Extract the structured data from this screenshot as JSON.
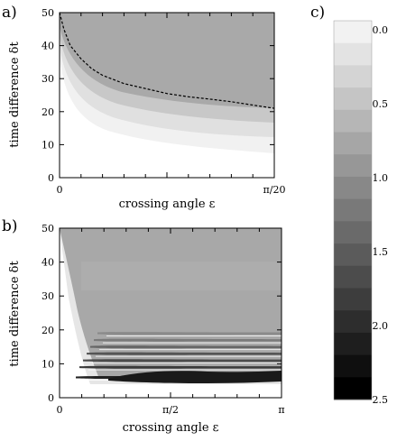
{
  "chart_data": [
    {
      "panel_label": "a)",
      "type": "heatmap",
      "xlabel": "crossing angle ε",
      "ylabel": "time difference δt",
      "xlim": [
        0,
        0.15708
      ],
      "ylim": [
        0,
        50
      ],
      "x_ticks": [
        "0",
        "π/20"
      ],
      "y_ticks": [
        "0",
        "10",
        "20",
        "30",
        "40",
        "50"
      ],
      "boundary_curve": {
        "style": "dashed",
        "x_frac": [
          0.0,
          0.02,
          0.05,
          0.1,
          0.15,
          0.2,
          0.3,
          0.4,
          0.5,
          0.6,
          0.7,
          0.8,
          0.9,
          1.0
        ],
        "y": [
          50,
          45,
          40,
          36,
          33,
          31,
          28.5,
          27,
          25.5,
          24.5,
          23.8,
          23,
          22,
          21
        ]
      }
    },
    {
      "panel_label": "b)",
      "type": "heatmap",
      "xlabel": "crossing angle ε",
      "ylabel": "time difference δt",
      "xlim": [
        0,
        3.14159
      ],
      "ylim": [
        0,
        50
      ],
      "x_ticks": [
        "0",
        "π/2",
        "π"
      ],
      "y_ticks": [
        "0",
        "10",
        "20",
        "30",
        "40",
        "50"
      ],
      "dark_bands_dt": [
        6,
        9,
        11,
        13,
        15,
        17,
        19
      ]
    },
    {
      "panel_label": "c)",
      "type": "colorbar",
      "tick_labels": [
        "0.0",
        "0.5",
        "1.0",
        "1.5",
        "2.0",
        "2.5"
      ],
      "range": [
        0,
        2.5
      ],
      "levels": 17,
      "color_low": "#f2f2f2",
      "color_high": "#000000"
    }
  ]
}
